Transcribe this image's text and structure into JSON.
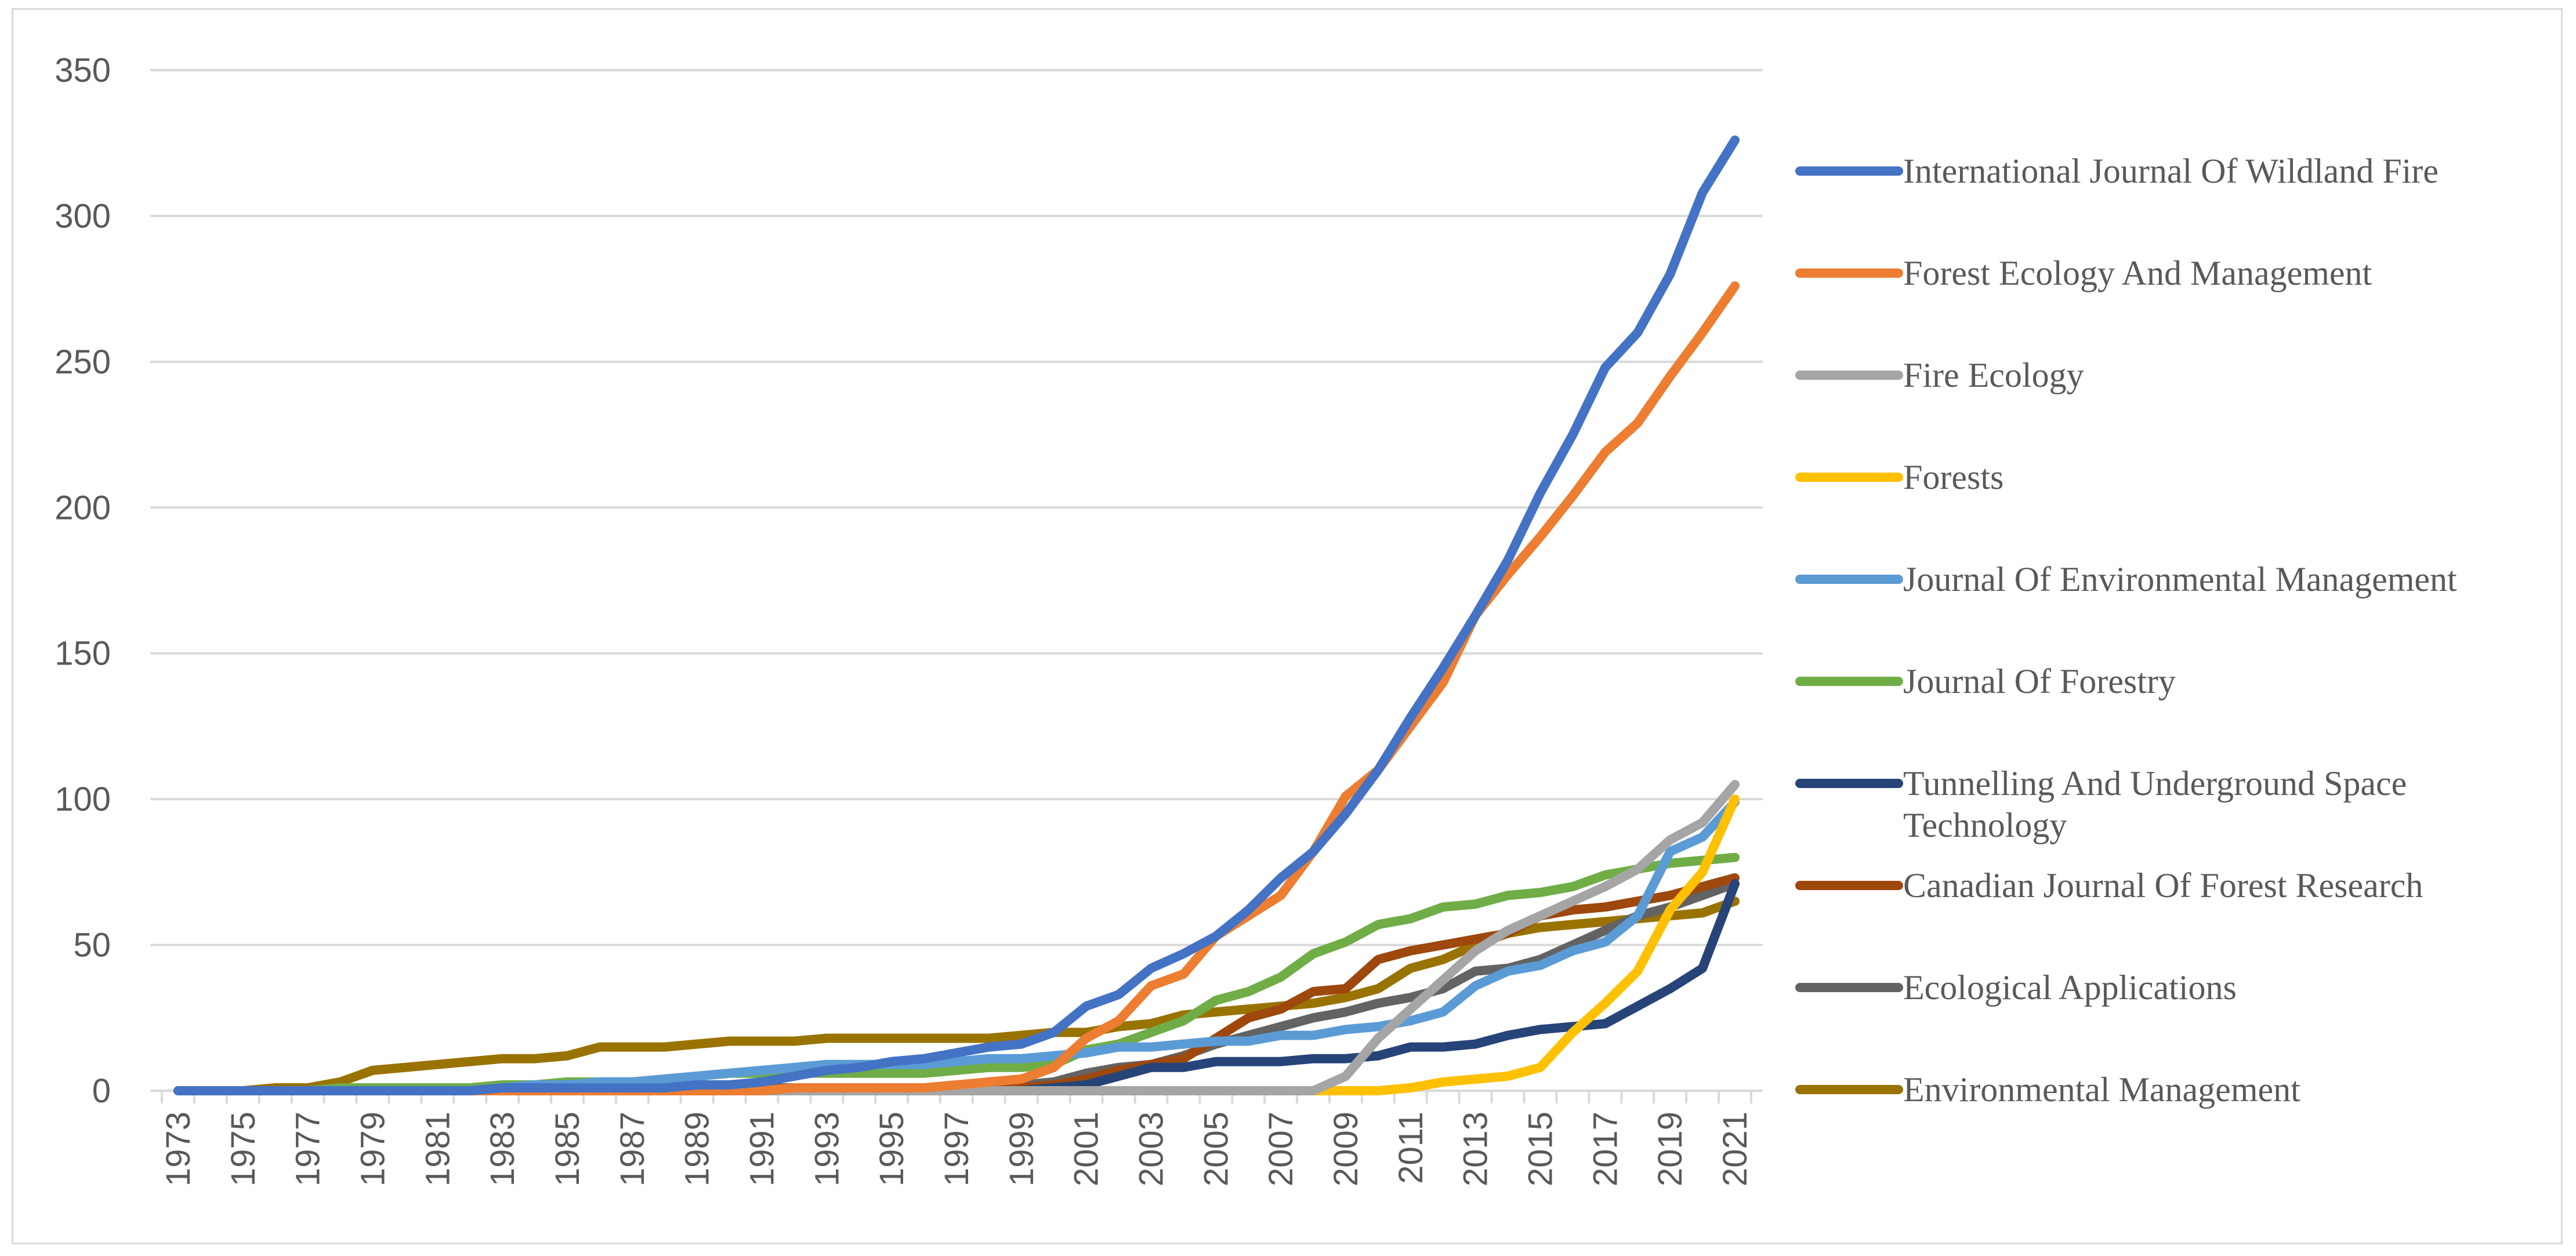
{
  "chart_data": {
    "type": "line",
    "title": "",
    "xlabel": "",
    "ylabel": "",
    "ylim": [
      0,
      350
    ],
    "yticks": [
      0,
      50,
      100,
      150,
      200,
      250,
      300,
      350
    ],
    "grid": true,
    "legend_position": "right",
    "x": [
      1973,
      1974,
      1975,
      1976,
      1977,
      1978,
      1979,
      1980,
      1981,
      1982,
      1983,
      1984,
      1985,
      1986,
      1987,
      1988,
      1989,
      1990,
      1991,
      1992,
      1993,
      1994,
      1995,
      1996,
      1997,
      1998,
      1999,
      2000,
      2001,
      2002,
      2003,
      2004,
      2005,
      2006,
      2007,
      2008,
      2009,
      2010,
      2011,
      2012,
      2013,
      2014,
      2015,
      2016,
      2017,
      2018,
      2019,
      2020,
      2021
    ],
    "x_tick_labels": [
      "1973",
      "1975",
      "1977",
      "1979",
      "1981",
      "1983",
      "1985",
      "1987",
      "1989",
      "1991",
      "1993",
      "1995",
      "1997",
      "1999",
      "2001",
      "2003",
      "2005",
      "2007",
      "2009",
      "2011",
      "2013",
      "2015",
      "2017",
      "2019",
      "2021"
    ],
    "series": [
      {
        "name": "International Journal Of Wildland Fire",
        "color": "#4472C4",
        "legend_lines": [
          "International Journal Of Wildland Fire"
        ],
        "values": [
          0,
          0,
          0,
          0,
          0,
          0,
          0,
          0,
          0,
          0,
          1,
          1,
          1,
          1,
          1,
          1,
          2,
          2,
          3,
          5,
          7,
          8,
          10,
          11,
          13,
          15,
          16,
          20,
          29,
          33,
          42,
          47,
          53,
          62,
          73,
          82,
          95,
          110,
          128,
          145,
          163,
          182,
          205,
          225,
          248,
          260,
          280,
          308,
          326
        ]
      },
      {
        "name": "Forest Ecology And Management",
        "color": "#ED7D31",
        "legend_lines": [
          "Forest Ecology And Management"
        ],
        "values": [
          0,
          0,
          0,
          0,
          0,
          0,
          0,
          0,
          0,
          0,
          0,
          0,
          0,
          0,
          0,
          0,
          0,
          0,
          0,
          1,
          1,
          1,
          1,
          1,
          2,
          3,
          4,
          8,
          18,
          24,
          36,
          40,
          53,
          60,
          67,
          82,
          101,
          110,
          125,
          140,
          163,
          177,
          190,
          204,
          219,
          229,
          245,
          260,
          276
        ]
      },
      {
        "name": "Fire Ecology",
        "color": "#A5A5A5",
        "legend_lines": [
          "Fire Ecology"
        ],
        "values": [
          0,
          0,
          0,
          0,
          0,
          0,
          0,
          0,
          0,
          0,
          0,
          0,
          0,
          0,
          0,
          0,
          0,
          0,
          0,
          0,
          0,
          0,
          0,
          0,
          0,
          0,
          0,
          0,
          0,
          0,
          0,
          0,
          0,
          0,
          0,
          0,
          5,
          18,
          28,
          38,
          48,
          55,
          60,
          65,
          70,
          76,
          86,
          92,
          105
        ]
      },
      {
        "name": "Forests",
        "color": "#FFC000",
        "legend_lines": [
          "Forests"
        ],
        "values": [
          0,
          0,
          0,
          0,
          0,
          0,
          0,
          0,
          0,
          0,
          0,
          0,
          0,
          0,
          0,
          0,
          0,
          0,
          0,
          0,
          0,
          0,
          0,
          0,
          0,
          0,
          0,
          0,
          0,
          0,
          0,
          0,
          0,
          0,
          0,
          0,
          0,
          0,
          1,
          3,
          4,
          5,
          8,
          20,
          30,
          41,
          62,
          75,
          100
        ]
      },
      {
        "name": "Journal Of Environmental Management",
        "color": "#5B9BD5",
        "legend_lines": [
          "Journal Of Environmental Management"
        ],
        "values": [
          0,
          0,
          0,
          0,
          0,
          0,
          0,
          0,
          0,
          0,
          1,
          2,
          2,
          3,
          3,
          4,
          5,
          6,
          7,
          8,
          9,
          9,
          9,
          9,
          10,
          11,
          11,
          12,
          13,
          15,
          15,
          16,
          17,
          17,
          19,
          19,
          21,
          22,
          24,
          27,
          36,
          41,
          43,
          48,
          51,
          60,
          82,
          87,
          99
        ]
      },
      {
        "name": "Journal Of Forestry",
        "color": "#70AD47",
        "legend_lines": [
          "Journal Of Forestry"
        ],
        "values": [
          0,
          0,
          0,
          0,
          0,
          1,
          1,
          1,
          1,
          1,
          2,
          2,
          3,
          3,
          3,
          4,
          5,
          6,
          6,
          6,
          6,
          6,
          6,
          6,
          7,
          8,
          8,
          9,
          14,
          16,
          20,
          24,
          31,
          34,
          39,
          47,
          51,
          57,
          59,
          63,
          64,
          67,
          68,
          70,
          74,
          76,
          78,
          79,
          80
        ]
      },
      {
        "name": "Tunnelling And Underground Space Technology",
        "color": "#264478",
        "legend_lines": [
          "Tunnelling And Underground Space",
          "Technology"
        ],
        "values": [
          0,
          0,
          0,
          0,
          0,
          0,
          0,
          0,
          0,
          0,
          0,
          0,
          0,
          0,
          0,
          0,
          0,
          0,
          0,
          0,
          0,
          0,
          0,
          0,
          0,
          0,
          0,
          1,
          2,
          5,
          8,
          8,
          10,
          10,
          10,
          11,
          11,
          12,
          15,
          15,
          16,
          19,
          21,
          22,
          23,
          29,
          35,
          42,
          71
        ]
      },
      {
        "name": "Canadian Journal Of Forest Research",
        "color": "#9E480E",
        "legend_lines": [
          "Canadian Journal Of Forest Research"
        ],
        "values": [
          0,
          0,
          0,
          0,
          0,
          0,
          0,
          0,
          0,
          0,
          0,
          0,
          0,
          0,
          0,
          0,
          0,
          0,
          0,
          0,
          0,
          0,
          0,
          0,
          0,
          1,
          1,
          2,
          4,
          7,
          9,
          11,
          18,
          25,
          28,
          34,
          35,
          45,
          48,
          50,
          52,
          54,
          60,
          62,
          63,
          65,
          67,
          70,
          73
        ]
      },
      {
        "name": "Ecological Applications",
        "color": "#636363",
        "legend_lines": [
          "Ecological Applications"
        ],
        "values": [
          0,
          0,
          0,
          0,
          0,
          0,
          0,
          0,
          0,
          0,
          1,
          1,
          1,
          1,
          1,
          1,
          1,
          1,
          1,
          1,
          1,
          1,
          1,
          1,
          1,
          2,
          2,
          3,
          6,
          8,
          9,
          12,
          16,
          19,
          22,
          25,
          27,
          30,
          32,
          35,
          41,
          42,
          45,
          50,
          55,
          60,
          63,
          67,
          71
        ]
      },
      {
        "name": "Environmental Management",
        "color": "#997300",
        "legend_lines": [
          "Environmental Management"
        ],
        "values": [
          0,
          0,
          0,
          1,
          1,
          3,
          7,
          8,
          9,
          10,
          11,
          11,
          12,
          15,
          15,
          15,
          16,
          17,
          17,
          17,
          18,
          18,
          18,
          18,
          18,
          18,
          19,
          20,
          20,
          22,
          23,
          26,
          27,
          28,
          29,
          30,
          32,
          35,
          42,
          45,
          50,
          54,
          56,
          57,
          58,
          59,
          60,
          61,
          65
        ]
      }
    ]
  }
}
